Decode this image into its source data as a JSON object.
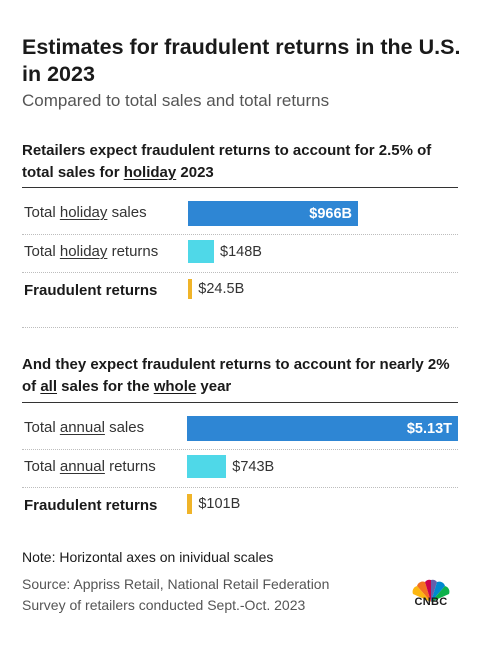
{
  "header": {
    "title": "Estimates for fraudulent returns in the U.S. in 2023",
    "subtitle": "Compared to total sales and total returns"
  },
  "section1": {
    "heading_parts": [
      "Retailers expect fraudulent returns to account for 2.5% of total sales for ",
      "holiday",
      " 2023"
    ]
  },
  "section2": {
    "heading_parts": [
      "And they expect fraudulent returns to account for nearly 2% of ",
      "all",
      " sales for the ",
      "whole",
      " year"
    ]
  },
  "chart_data": [
    {
      "type": "bar",
      "orientation": "horizontal",
      "title": "Retailers expect fraudulent returns to account for 2.5% of total sales for holiday 2023",
      "categories": [
        "Total holiday sales",
        "Total holiday returns",
        "Fraudulent returns"
      ],
      "values": [
        966,
        148,
        24.5
      ],
      "unit": "billion USD",
      "value_labels": [
        "$966B",
        "$148B",
        "$24.5B"
      ],
      "colors": [
        "#2e86d4",
        "#4fd8e8",
        "#f0b429"
      ]
    },
    {
      "type": "bar",
      "orientation": "horizontal",
      "title": "And they expect fraudulent returns to account for nearly 2% of all sales for the whole year",
      "categories": [
        "Total annual sales",
        "Total annual returns",
        "Fraudulent returns"
      ],
      "values": [
        5130,
        743,
        101
      ],
      "unit": "billion USD",
      "value_labels": [
        "$5.13T",
        "$743B",
        "$101B"
      ],
      "colors": [
        "#2e86d4",
        "#4fd8e8",
        "#f0b429"
      ]
    }
  ],
  "footer": {
    "note": "Note: Horizontal axes on inividual scales",
    "source_line1": "Source: Appriss Retail, National Retail Federation",
    "source_line2": "Survey of retailers conducted Sept.-Oct. 2023",
    "logo_text": "CNBC"
  }
}
